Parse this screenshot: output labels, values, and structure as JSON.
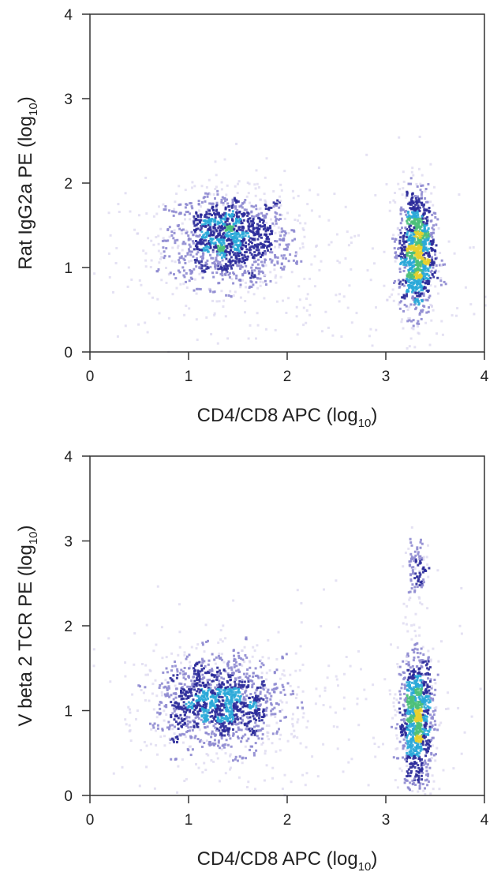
{
  "chart_data": [
    {
      "type": "scatter",
      "subtype": "flow-cytometry density plot",
      "xlabel": "CD4/CD8 APC (log10)",
      "xlabel_main": "CD4/CD8 APC (log",
      "xlabel_sub": "10",
      "ylabel": "Rat IgG2a PE (log10)",
      "ylabel_main": "Rat IgG2a PE (log",
      "ylabel_sub": "10",
      "xlim": [
        0,
        4
      ],
      "ylim": [
        0,
        4
      ],
      "xticks": [
        "0",
        "1",
        "2",
        "3",
        "4"
      ],
      "yticks": [
        "0",
        "1",
        "2",
        "3",
        "4"
      ],
      "grid": false,
      "populations": [
        {
          "x_center": 1.4,
          "y_center": 1.35,
          "x_sd": 0.32,
          "y_sd": 0.28,
          "relative_size": 0.5
        },
        {
          "x_center": 3.3,
          "y_center": 1.2,
          "x_sd": 0.09,
          "y_sd": 0.38,
          "relative_size": 0.4
        },
        {
          "x_center": 2.0,
          "y_center": 1.0,
          "x_sd": 1.2,
          "y_sd": 0.6,
          "relative_size": 0.1
        }
      ],
      "density_colors": [
        "#d8d4ee",
        "#8e8ad0",
        "#2b2a9a",
        "#2aa8d8",
        "#4cc07a",
        "#e8d030"
      ]
    },
    {
      "type": "scatter",
      "subtype": "flow-cytometry density plot",
      "xlabel": "CD4/CD8 APC (log10)",
      "xlabel_main": "CD4/CD8 APC (log",
      "xlabel_sub": "10",
      "ylabel": "V beta 2 TCR PE (log10)",
      "ylabel_main": "V beta 2 TCR PE (log",
      "ylabel_sub": "10",
      "xlim": [
        0,
        4
      ],
      "ylim": [
        0,
        4
      ],
      "xticks": [
        "0",
        "1",
        "2",
        "3",
        "4"
      ],
      "yticks": [
        "0",
        "1",
        "2",
        "3",
        "4"
      ],
      "grid": false,
      "populations": [
        {
          "x_center": 1.3,
          "y_center": 1.1,
          "x_sd": 0.33,
          "y_sd": 0.28,
          "relative_size": 0.5
        },
        {
          "x_center": 3.3,
          "y_center": 0.9,
          "x_sd": 0.09,
          "y_sd": 0.4,
          "relative_size": 0.36
        },
        {
          "x_center": 3.3,
          "y_center": 2.65,
          "x_sd": 0.06,
          "y_sd": 0.22,
          "relative_size": 0.04
        },
        {
          "x_center": 2.0,
          "y_center": 1.0,
          "x_sd": 1.2,
          "y_sd": 0.6,
          "relative_size": 0.1
        }
      ],
      "density_colors": [
        "#d8d4ee",
        "#8e8ad0",
        "#2b2a9a",
        "#2aa8d8",
        "#4cc07a",
        "#e8d030"
      ]
    }
  ]
}
